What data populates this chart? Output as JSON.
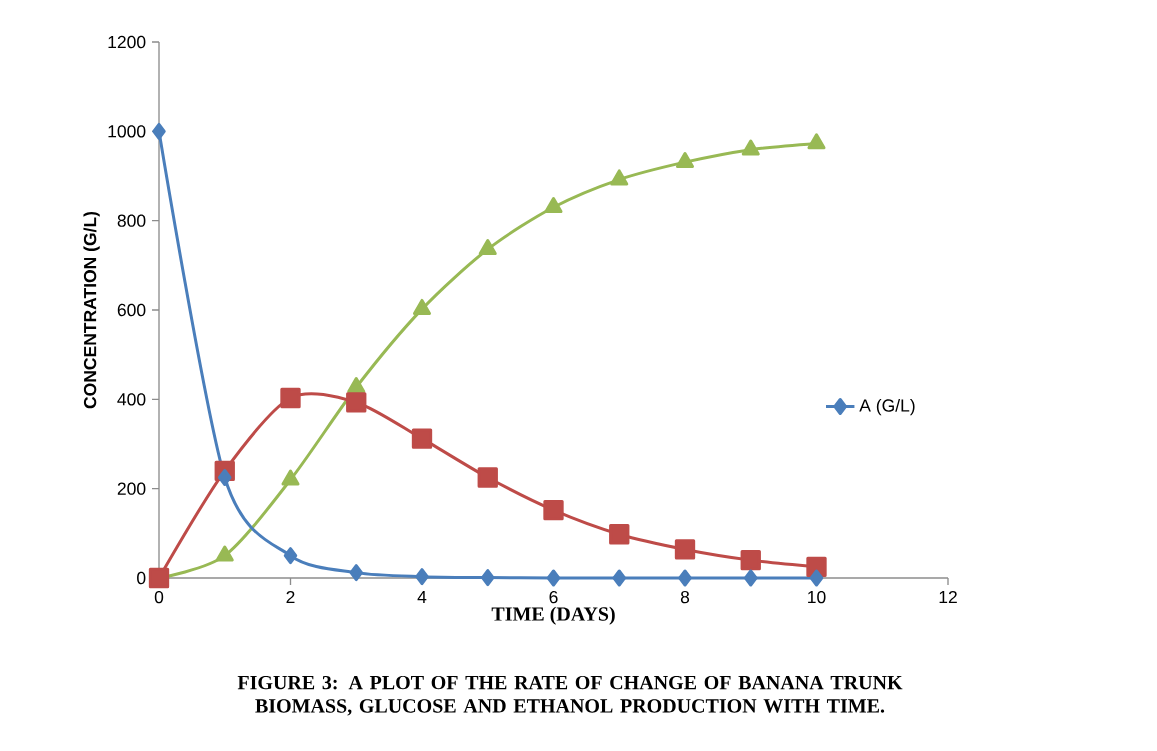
{
  "chart_data": {
    "type": "line",
    "xlabel": "TIME (DAYS)",
    "ylabel": "CONCENTRATION (G/L)",
    "annotations": [
      "FIGURE 3: A PLOT OF THE RATE OF CHANGE OF BANANA TRUNK BIOMASS, GLUCOSE AND ETHANOL PRODUCTION WITH TIME."
    ],
    "x": [
      0,
      1,
      2,
      3,
      4,
      5,
      6,
      7,
      8,
      9,
      10
    ],
    "series": [
      {
        "name": "A (G/L)",
        "color": "#4a7ebb",
        "marker": "diamond",
        "values": [
          1000,
          225,
          50,
          12,
          3,
          1,
          0,
          0,
          0,
          0,
          0
        ]
      },
      {
        "color": "#be4b48",
        "marker": "square",
        "values": [
          0,
          240,
          403,
          393,
          312,
          225,
          152,
          98,
          64,
          40,
          25
        ]
      },
      {
        "color": "#98b954",
        "marker": "triangle",
        "values": [
          0,
          50,
          220,
          427,
          602,
          736,
          830,
          892,
          931,
          959,
          973
        ]
      }
    ],
    "xlim": [
      0,
      12
    ],
    "xticks": [
      0,
      2,
      4,
      6,
      8,
      10,
      12
    ],
    "ylim": [
      0,
      1200
    ],
    "yticks": [
      0,
      200,
      400,
      600,
      800,
      1000,
      1200
    ],
    "grid": false,
    "legend": "right",
    "line_style": "solid"
  }
}
